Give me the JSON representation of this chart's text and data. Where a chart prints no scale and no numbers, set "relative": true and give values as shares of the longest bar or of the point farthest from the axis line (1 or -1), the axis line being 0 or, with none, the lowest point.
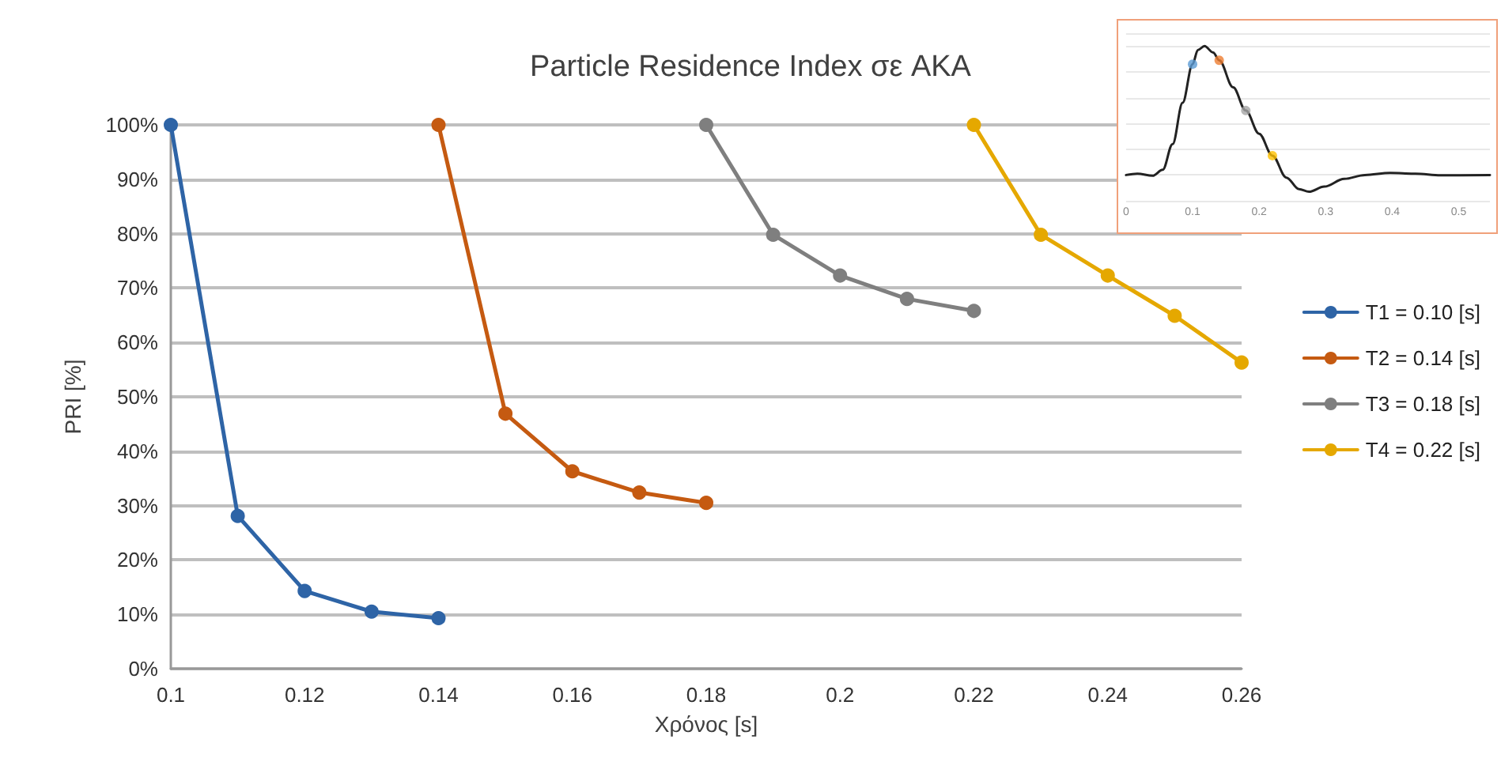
{
  "chart_data": [
    {
      "type": "line",
      "title": "Particle Residence Index σε AKA",
      "xlabel": "Χρόνος [s]",
      "ylabel": "PRI [%]",
      "xlim": [
        0.1,
        0.26
      ],
      "xticks": [
        0.1,
        0.12,
        0.14,
        0.16,
        0.18,
        0.2,
        0.22,
        0.24,
        0.26
      ],
      "ylim": [
        0,
        100
      ],
      "yticks": [
        {
          "value": 0,
          "label": "0%"
        },
        {
          "value": 10,
          "label": "10%"
        },
        {
          "value": 20,
          "label": "20%"
        },
        {
          "value": 30,
          "label": "30%"
        },
        {
          "value": 40,
          "label": "40%"
        },
        {
          "value": 50,
          "label": "50%"
        },
        {
          "value": 60,
          "label": "60%"
        },
        {
          "value": 70,
          "label": "70%"
        },
        {
          "value": 80,
          "label": "80%"
        },
        {
          "value": 90,
          "label": "90%"
        },
        {
          "value": 100,
          "label": "100%"
        }
      ],
      "grid": "y",
      "legend": "right",
      "marker": "circle",
      "series": [
        {
          "name": "T1 = 0.10 [s]",
          "color": "#2e64a6",
          "x": [
            0.1,
            0.11,
            0.12,
            0.13,
            0.14
          ],
          "values": [
            100,
            28.1,
            14.3,
            10.5,
            9.3
          ]
        },
        {
          "name": "T2 = 0.14 [s]",
          "color": "#c55a11",
          "x": [
            0.14,
            0.15,
            0.16,
            0.17,
            0.18
          ],
          "values": [
            100,
            46.9,
            36.3,
            32.4,
            30.5
          ]
        },
        {
          "name": "T3 = 0.18 [s]",
          "color": "#7f7f7f",
          "x": [
            0.18,
            0.19,
            0.2,
            0.21,
            0.22
          ],
          "values": [
            100,
            79.8,
            72.3,
            68.0,
            65.8
          ]
        },
        {
          "name": "T4 = 0.22 [s]",
          "color": "#e5a800",
          "x": [
            0.22,
            0.23,
            0.24,
            0.25,
            0.26
          ],
          "values": [
            100,
            79.8,
            72.3,
            64.9,
            56.3
          ]
        }
      ]
    },
    {
      "type": "line",
      "relative": true,
      "xlim": [
        0,
        0.547
      ],
      "xticks": [
        0,
        0.1,
        0.2,
        0.3,
        0.4,
        0.5
      ],
      "tick_labels": "x",
      "grid": "y",
      "legend": false,
      "series": [
        {
          "color": "#222222",
          "marker": "none",
          "x": [
            0,
            0.017,
            0.04,
            0.055,
            0.07,
            0.085,
            0.1,
            0.108,
            0.118,
            0.131,
            0.14,
            0.161,
            0.18,
            0.2,
            0.22,
            0.241,
            0.26,
            0.275,
            0.298,
            0.328,
            0.359,
            0.397,
            0.435,
            0.473,
            0.547
          ],
          "values": [
            0,
            0.01,
            -0.006,
            0.04,
            0.24,
            0.56,
            0.86,
            0.97,
            1,
            0.95,
            0.89,
            0.68,
            0.5,
            0.32,
            0.15,
            -0.02,
            -0.11,
            -0.13,
            -0.09,
            -0.03,
            0,
            0.016,
            0.01,
            -0.003,
            0
          ]
        },
        {
          "type": "scatter",
          "x": [
            0.1,
            0.14,
            0.18,
            0.22
          ],
          "values": [
            0.86,
            0.89,
            0.5,
            0.15
          ],
          "colors": [
            "#5b9bd5",
            "#ed7d31",
            "#a5a5a5",
            "#ffc000"
          ]
        }
      ]
    }
  ]
}
